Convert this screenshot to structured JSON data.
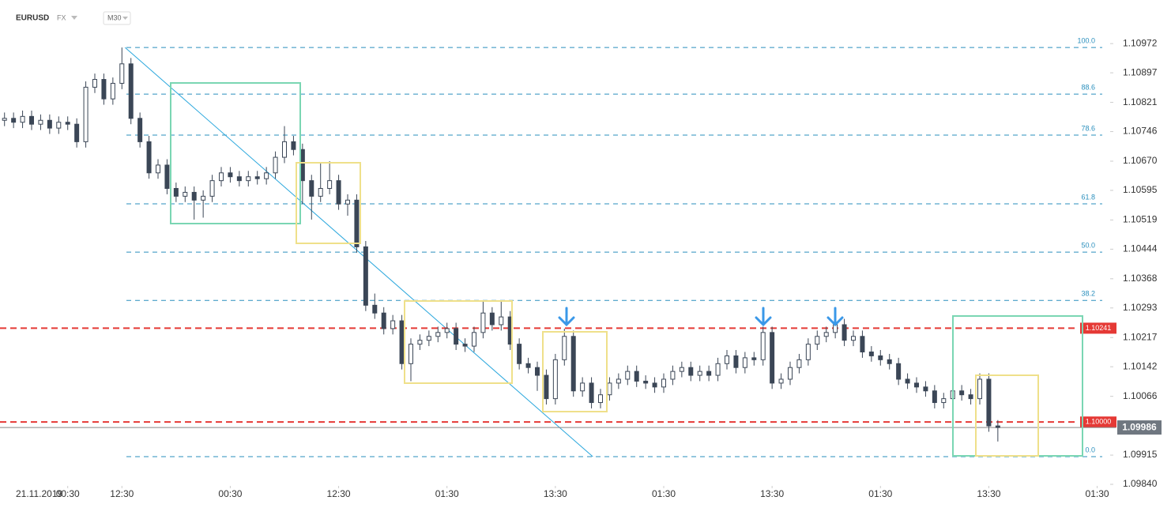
{
  "chart_data": {
    "type": "candlestick",
    "symbol": "EURUSD",
    "market": "FX",
    "interval": "M30",
    "date": "21.11.2019",
    "ylim": [
      1.09836,
      1.11084
    ],
    "yticks": [
      1.10972,
      1.10897,
      1.10821,
      1.10746,
      {
        "value": 1.1067,
        "label": "1.10670"
      },
      1.10595,
      1.10519,
      1.10444,
      1.10368,
      1.10293,
      1.10217,
      1.10142,
      1.10066,
      1.09915,
      {
        "value": 1.0984,
        "label": "1.09840"
      }
    ],
    "xlim": [
      0,
      245
    ],
    "xticks": [
      {
        "value": 15,
        "label": "00:30"
      },
      {
        "value": 27,
        "label": "12:30"
      },
      {
        "value": 51,
        "label": "00:30"
      },
      {
        "value": 75,
        "label": "12:30"
      },
      {
        "value": 99,
        "label": "01:30"
      },
      {
        "value": 123,
        "label": "13:30"
      },
      {
        "value": 147,
        "label": "01:30"
      },
      {
        "value": 171,
        "label": "13:30"
      },
      {
        "value": 195,
        "label": "01:30"
      },
      {
        "value": 219,
        "label": "13:30"
      },
      {
        "value": 243,
        "label": "01:30"
      }
    ],
    "candles": {
      "up_color": "#ffffff",
      "down_color": "#3b4656",
      "x": [
        1,
        3,
        5,
        7,
        9,
        11,
        13,
        15,
        17,
        19,
        21,
        23,
        25,
        27,
        29,
        31,
        33,
        35,
        37,
        39,
        41,
        43,
        45,
        47,
        49,
        51,
        53,
        55,
        57,
        59,
        61,
        63,
        65,
        67,
        69,
        71,
        73,
        75,
        77,
        79,
        81,
        83,
        85,
        87,
        89,
        91,
        93,
        95,
        97,
        99,
        101,
        103,
        105,
        107,
        109,
        111,
        113,
        115,
        117,
        119,
        121,
        123,
        125,
        127,
        129,
        131,
        133,
        135,
        137,
        139,
        141,
        143,
        145,
        147,
        149,
        151,
        153,
        155,
        157,
        159,
        161,
        163,
        165,
        167,
        169,
        171,
        173,
        175,
        177,
        179,
        181,
        183,
        185,
        187,
        189,
        191,
        193,
        195,
        197,
        199,
        201,
        203,
        205,
        207,
        209,
        211,
        213,
        215,
        217,
        219,
        221
      ],
      "open": [
        1.10775,
        1.1078,
        1.1077,
        1.10785,
        1.10765,
        1.10775,
        1.10755,
        1.1077,
        1.10765,
        1.1072,
        1.1086,
        1.1088,
        1.1083,
        1.1087,
        1.1092,
        1.1078,
        1.1072,
        1.1064,
        1.1066,
        1.106,
        1.1058,
        1.1059,
        1.1057,
        1.1058,
        1.1062,
        1.1064,
        1.1063,
        1.1062,
        1.1063,
        1.10625,
        1.1064,
        1.1068,
        1.1072,
        1.107,
        1.1062,
        1.1058,
        1.106,
        1.1062,
        1.1056,
        1.1057,
        1.1045,
        1.103,
        1.1028,
        1.1024,
        1.1026,
        1.1015,
        1.102,
        1.1021,
        1.1022,
        1.1023,
        1.1024,
        1.102,
        1.10195,
        1.1023,
        1.1028,
        1.1025,
        1.1027,
        1.102,
        1.1015,
        1.1014,
        1.1012,
        1.1006,
        1.1016,
        1.1022,
        1.1008,
        1.101,
        1.1005,
        1.1007,
        1.101,
        1.1011,
        1.1013,
        1.10105,
        1.101,
        1.1009,
        1.1011,
        1.1013,
        1.1014,
        1.1012,
        1.1013,
        1.1012,
        1.1015,
        1.1017,
        1.1014,
        1.10165,
        1.1016,
        1.1023,
        1.101,
        1.1011,
        1.1014,
        1.1016,
        1.102,
        1.1022,
        1.1023,
        1.1025,
        1.1021,
        1.1022,
        1.1018,
        1.1017,
        1.1016,
        1.1015,
        1.1011,
        1.101,
        1.1009,
        1.1008,
        1.1005,
        1.1006,
        1.1008,
        1.1007,
        1.1006,
        1.1011,
        1.0999
      ],
      "high": [
        1.10795,
        1.10795,
        1.108,
        1.108,
        1.1079,
        1.1079,
        1.10785,
        1.10785,
        1.1078,
        1.10875,
        1.10895,
        1.10895,
        1.10885,
        1.10962,
        1.10935,
        1.10795,
        1.10735,
        1.10675,
        1.10675,
        1.10615,
        1.10605,
        1.10605,
        1.10595,
        1.10635,
        1.10655,
        1.10655,
        1.10645,
        1.10645,
        1.10645,
        1.10655,
        1.10695,
        1.1076,
        1.10735,
        1.10715,
        1.10635,
        1.10665,
        1.1067,
        1.10635,
        1.10585,
        1.10585,
        1.10465,
        1.1033,
        1.10295,
        1.10275,
        1.10275,
        1.10215,
        1.10225,
        1.10235,
        1.10245,
        1.10255,
        1.10255,
        1.10215,
        1.10245,
        1.1031,
        1.10295,
        1.1031,
        1.10285,
        1.10215,
        1.10165,
        1.10155,
        1.10135,
        1.10175,
        1.1024,
        1.10235,
        1.10115,
        1.10115,
        1.10085,
        1.10115,
        1.10125,
        1.10145,
        1.10145,
        1.1012,
        1.10115,
        1.10125,
        1.10145,
        1.10155,
        1.10155,
        1.10145,
        1.10145,
        1.10165,
        1.10185,
        1.10185,
        1.1018,
        1.1018,
        1.10245,
        1.10245,
        1.10125,
        1.10155,
        1.10175,
        1.10215,
        1.10235,
        1.10245,
        1.10265,
        1.10265,
        1.10235,
        1.10235,
        1.10195,
        1.10185,
        1.10175,
        1.10165,
        1.10125,
        1.10115,
        1.10105,
        1.10095,
        1.10075,
        1.10095,
        1.10095,
        1.10085,
        1.10125,
        1.10125,
        1.10005
      ],
      "low": [
        1.1076,
        1.10755,
        1.10755,
        1.1075,
        1.1075,
        1.1074,
        1.1074,
        1.1075,
        1.10705,
        1.10705,
        1.10845,
        1.10815,
        1.10815,
        1.10855,
        1.10765,
        1.10705,
        1.10625,
        1.10625,
        1.10585,
        1.10565,
        1.10565,
        1.1052,
        1.10525,
        1.10565,
        1.10605,
        1.10615,
        1.10605,
        1.10605,
        1.1061,
        1.1061,
        1.10625,
        1.10665,
        1.10685,
        1.1056,
        1.1052,
        1.10565,
        1.10585,
        1.10545,
        1.1053,
        1.10435,
        1.10285,
        1.10265,
        1.10225,
        1.10225,
        1.10135,
        1.10105,
        1.10185,
        1.10195,
        1.10205,
        1.10215,
        1.10185,
        1.1018,
        1.1018,
        1.10215,
        1.10235,
        1.10235,
        1.10185,
        1.10135,
        1.10125,
        1.1008,
        1.10045,
        1.10045,
        1.10145,
        1.10065,
        1.10065,
        1.10035,
        1.10035,
        1.10055,
        1.10085,
        1.10095,
        1.1009,
        1.10085,
        1.10075,
        1.10075,
        1.10095,
        1.10115,
        1.10105,
        1.10105,
        1.10105,
        1.10105,
        1.10135,
        1.10125,
        1.10125,
        1.10145,
        1.10145,
        1.10085,
        1.10085,
        1.10095,
        1.10125,
        1.10145,
        1.10185,
        1.10205,
        1.10215,
        1.10195,
        1.10195,
        1.10165,
        1.10155,
        1.10145,
        1.10135,
        1.10095,
        1.10085,
        1.10075,
        1.10065,
        1.10035,
        1.10035,
        1.10045,
        1.10055,
        1.10045,
        1.10045,
        1.09975,
        1.0995
      ],
      "close": [
        1.1078,
        1.1077,
        1.10785,
        1.10765,
        1.10775,
        1.10755,
        1.1077,
        1.10765,
        1.1072,
        1.1086,
        1.1088,
        1.1083,
        1.1087,
        1.1092,
        1.1078,
        1.1072,
        1.1064,
        1.1066,
        1.106,
        1.1058,
        1.1059,
        1.1057,
        1.1058,
        1.1062,
        1.1064,
        1.1063,
        1.1062,
        1.1063,
        1.10625,
        1.1064,
        1.1068,
        1.1072,
        1.107,
        1.1062,
        1.1058,
        1.106,
        1.1062,
        1.1056,
        1.1057,
        1.1045,
        1.103,
        1.1028,
        1.1024,
        1.1026,
        1.1015,
        1.102,
        1.1021,
        1.1022,
        1.1023,
        1.1024,
        1.102,
        1.10195,
        1.1023,
        1.1028,
        1.1025,
        1.1027,
        1.102,
        1.1015,
        1.1014,
        1.1012,
        1.1006,
        1.1016,
        1.1022,
        1.1008,
        1.101,
        1.1005,
        1.1007,
        1.101,
        1.1011,
        1.1013,
        1.10105,
        1.101,
        1.1009,
        1.1011,
        1.1013,
        1.1014,
        1.1012,
        1.1013,
        1.1012,
        1.1015,
        1.1017,
        1.1014,
        1.10165,
        1.1016,
        1.1023,
        1.101,
        1.1011,
        1.1014,
        1.1016,
        1.102,
        1.1022,
        1.1023,
        1.1025,
        1.1021,
        1.1022,
        1.1018,
        1.1017,
        1.1016,
        1.1015,
        1.1011,
        1.101,
        1.1009,
        1.1008,
        1.1005,
        1.1006,
        1.1008,
        1.1007,
        1.1006,
        1.1011,
        1.0999,
        1.09986
      ]
    },
    "fibonacci": {
      "color": "#2a8fbd",
      "high": 1.10962,
      "low": 1.09911,
      "levels": [
        {
          "value": 100,
          "label": "100.0"
        },
        88.6,
        78.6,
        61.8,
        {
          "value": 50,
          "label": "50.0"
        },
        38.2,
        {
          "value": 0,
          "label": "0.0"
        }
      ]
    },
    "trendline": {
      "color": "#2aa7dd",
      "x": [
        27.7,
        131.3
      ],
      "y": [
        1.10962,
        1.09911
      ]
    },
    "levels": {
      "color": "#e53935",
      "items": [
        {
          "value": 1.10241,
          "label": "1.10241"
        },
        {
          "value": 1.1,
          "label": "1.10000"
        }
      ]
    },
    "last_price": 1.09986
  }
}
